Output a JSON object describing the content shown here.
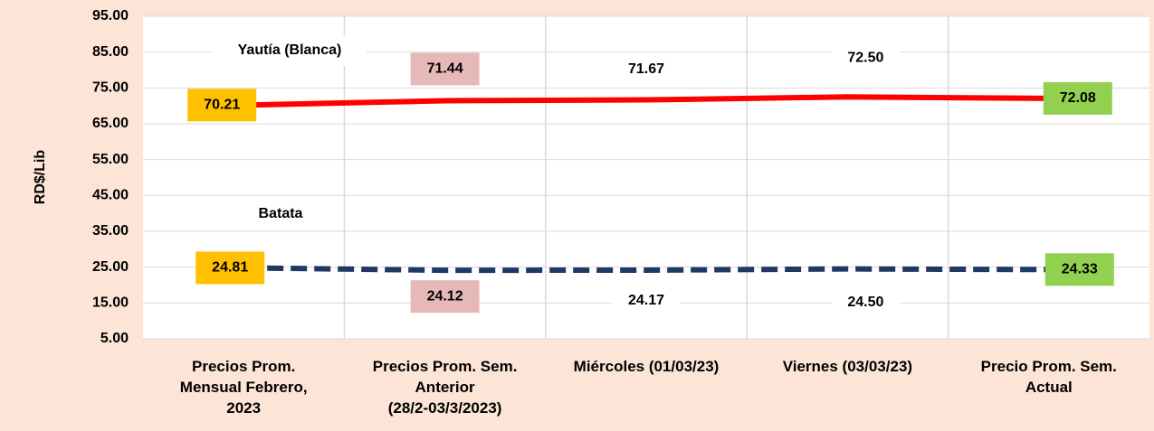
{
  "chart_data": {
    "type": "line",
    "y_label": "RD$/Lib",
    "categories": [
      "Precios Prom.\nMensual Febrero,\n2023",
      "Precios Prom. Sem.\nAnterior\n(28/2-03/3/2023)",
      "Miércoles  (01/03/23)",
      "Viernes  (03/03/23)",
      "Precio Prom. Sem.\nActual"
    ],
    "series": [
      {
        "name": "Yautía (Blanca)",
        "color": "#ff0000",
        "dashed": false,
        "values": [
          70.21,
          71.44,
          71.67,
          72.5,
          72.08
        ],
        "value_labels": [
          "70.21",
          "71.44",
          "71.67",
          "72.50",
          "72.08"
        ],
        "label_fills": [
          "#ffc000",
          "#e6b8b7",
          "#ffffff",
          "#ffffff",
          "#92d050"
        ]
      },
      {
        "name": "Batata",
        "color": "#1f3864",
        "dashed": true,
        "values": [
          24.81,
          24.12,
          24.17,
          24.5,
          24.33
        ],
        "value_labels": [
          "24.81",
          "24.12",
          "24.17",
          "24.50",
          "24.33"
        ],
        "label_fills": [
          "#ffc000",
          "#e6b8b7",
          "#ffffff",
          "#ffffff",
          "#92d050"
        ]
      }
    ],
    "ylim": [
      5,
      95
    ],
    "yticks": [
      {
        "value": 5,
        "label": "5.00"
      },
      {
        "value": 15,
        "label": "15.00"
      },
      {
        "value": 25,
        "label": "25.00"
      },
      {
        "value": 35,
        "label": "35.00"
      },
      {
        "value": 45,
        "label": "45.00"
      },
      {
        "value": 55,
        "label": "55.00"
      },
      {
        "value": 65,
        "label": "65.00"
      },
      {
        "value": 75,
        "label": "75.00"
      },
      {
        "value": 85,
        "label": "85.00"
      },
      {
        "value": 95,
        "label": "95.00"
      }
    ],
    "grid": true
  }
}
